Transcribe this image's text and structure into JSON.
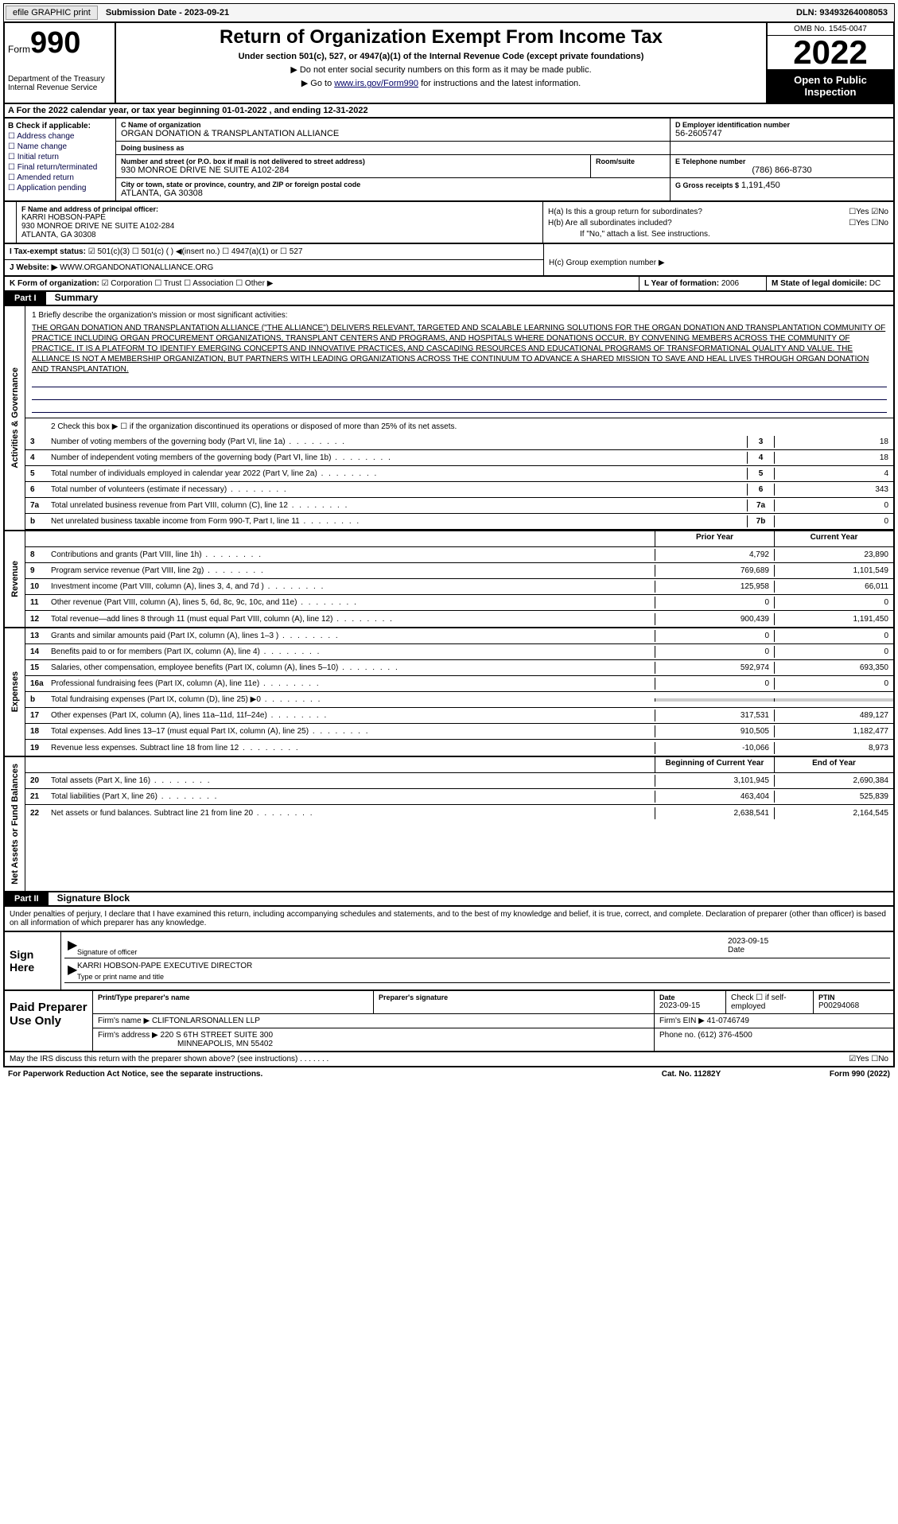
{
  "header": {
    "efile": "efile GRAPHIC print",
    "submission_label": "Submission Date - 2023-09-21",
    "dln": "DLN: 93493264008053"
  },
  "form": {
    "form_label": "Form",
    "form_number": "990",
    "title": "Return of Organization Exempt From Income Tax",
    "subtitle": "Under section 501(c), 527, or 4947(a)(1) of the Internal Revenue Code (except private foundations)",
    "note1": "▶ Do not enter social security numbers on this form as it may be made public.",
    "note2_pre": "▶ Go to ",
    "note2_link": "www.irs.gov/Form990",
    "note2_post": " for instructions and the latest information.",
    "dept": "Department of the Treasury\nInternal Revenue Service",
    "omb": "OMB No. 1545-0047",
    "year": "2022",
    "open": "Open to Public Inspection"
  },
  "section_a": "A For the 2022 calendar year, or tax year beginning 01-01-2022   , and ending 12-31-2022",
  "col_b": {
    "label": "B Check if applicable:",
    "items": [
      "Address change",
      "Name change",
      "Initial return",
      "Final return/terminated",
      "Amended return",
      "Application pending"
    ]
  },
  "org": {
    "c_label": "C Name of organization",
    "name": "ORGAN DONATION & TRANSPLANTATION ALLIANCE",
    "dba_label": "Doing business as",
    "dba": "",
    "addr_label": "Number and street (or P.O. box if mail is not delivered to street address)",
    "addr": "930 MONROE DRIVE NE SUITE A102-284",
    "room_label": "Room/suite",
    "room": "",
    "city_label": "City or town, state or province, country, and ZIP or foreign postal code",
    "city": "ATLANTA, GA  30308",
    "d_label": "D Employer identification number",
    "ein": "56-2605747",
    "e_label": "E Telephone number",
    "phone": "(786) 866-8730",
    "g_label": "G Gross receipts $",
    "gross": "1,191,450"
  },
  "f": {
    "label": "F  Name and address of principal officer:",
    "name": "KARRI HOBSON-PAPE",
    "addr1": "930 MONROE DRIVE NE SUITE A102-284",
    "addr2": "ATLANTA, GA  30308"
  },
  "h": {
    "a": "H(a)  Is this a group return for subordinates?",
    "a_yn": "☐Yes ☑No",
    "b": "H(b)  Are all subordinates included?",
    "b_yn": "☐Yes ☐No",
    "b_note": "If \"No,\" attach a list. See instructions.",
    "c": "H(c)  Group exemption number ▶"
  },
  "i": {
    "label": "I   Tax-exempt status:",
    "opts": "☑ 501(c)(3)   ☐ 501(c) (  ) ◀(insert no.)   ☐ 4947(a)(1) or   ☐ 527"
  },
  "j": {
    "label": "J   Website: ▶",
    "val": "WWW.ORGANDONATIONALLIANCE.ORG"
  },
  "k": {
    "label": "K Form of organization:",
    "opts": "☑ Corporation ☐ Trust ☐ Association ☐ Other ▶"
  },
  "l": {
    "label": "L Year of formation:",
    "val": "2006"
  },
  "m": {
    "label": "M State of legal domicile:",
    "val": "DC"
  },
  "part1": {
    "header": "Part I",
    "title": "Summary",
    "q1_label": "1  Briefly describe the organization's mission or most significant activities:",
    "mission": "THE ORGAN DONATION AND TRANSPLANTATION ALLIANCE (\"THE ALLIANCE\") DELIVERS RELEVANT, TARGETED AND SCALABLE LEARNING SOLUTIONS FOR THE ORGAN DONATION AND TRANSPLANTATION COMMUNITY OF PRACTICE INCLUDING ORGAN PROCUREMENT ORGANIZATIONS, TRANSPLANT CENTERS AND PROGRAMS, AND HOSPITALS WHERE DONATIONS OCCUR. BY CONVENING MEMBERS ACROSS THE COMMUNITY OF PRACTICE, IT IS A PLATFORM TO IDENTIFY EMERGING CONCEPTS AND INNOVATIVE PRACTICES, AND CASCADING RESOURCES AND EDUCATIONAL PROGRAMS OF TRANSFORMATIONAL QUALITY AND VALUE. THE ALLIANCE IS NOT A MEMBERSHIP ORGANIZATION, BUT PARTNERS WITH LEADING ORGANIZATIONS ACROSS THE CONTINUUM TO ADVANCE A SHARED MISSION TO SAVE AND HEAL LIVES THROUGH ORGAN DONATION AND TRANSPLANTATION.",
    "q2": "2   Check this box ▶ ☐ if the organization discontinued its operations or disposed of more than 25% of its net assets.",
    "tabs": {
      "activities": "Activities & Governance",
      "revenue": "Revenue",
      "expenses": "Expenses",
      "netassets": "Net Assets or Fund Balances"
    },
    "lines_ag": [
      {
        "n": "3",
        "d": "Number of voting members of the governing body (Part VI, line 1a)",
        "ref": "3",
        "v": "18"
      },
      {
        "n": "4",
        "d": "Number of independent voting members of the governing body (Part VI, line 1b)",
        "ref": "4",
        "v": "18"
      },
      {
        "n": "5",
        "d": "Total number of individuals employed in calendar year 2022 (Part V, line 2a)",
        "ref": "5",
        "v": "4"
      },
      {
        "n": "6",
        "d": "Total number of volunteers (estimate if necessary)",
        "ref": "6",
        "v": "343"
      },
      {
        "n": "7a",
        "d": "Total unrelated business revenue from Part VIII, column (C), line 12",
        "ref": "7a",
        "v": "0"
      },
      {
        "n": "b",
        "d": "Net unrelated business taxable income from Form 990-T, Part I, line 11",
        "ref": "7b",
        "v": "0"
      }
    ],
    "header_prior": "Prior Year",
    "header_curr": "Current Year",
    "lines_rev": [
      {
        "n": "8",
        "d": "Contributions and grants (Part VIII, line 1h)",
        "p": "4,792",
        "c": "23,890"
      },
      {
        "n": "9",
        "d": "Program service revenue (Part VIII, line 2g)",
        "p": "769,689",
        "c": "1,101,549"
      },
      {
        "n": "10",
        "d": "Investment income (Part VIII, column (A), lines 3, 4, and 7d )",
        "p": "125,958",
        "c": "66,011"
      },
      {
        "n": "11",
        "d": "Other revenue (Part VIII, column (A), lines 5, 6d, 8c, 9c, 10c, and 11e)",
        "p": "0",
        "c": "0"
      },
      {
        "n": "12",
        "d": "Total revenue—add lines 8 through 11 (must equal Part VIII, column (A), line 12)",
        "p": "900,439",
        "c": "1,191,450"
      }
    ],
    "lines_exp": [
      {
        "n": "13",
        "d": "Grants and similar amounts paid (Part IX, column (A), lines 1–3 )",
        "p": "0",
        "c": "0"
      },
      {
        "n": "14",
        "d": "Benefits paid to or for members (Part IX, column (A), line 4)",
        "p": "0",
        "c": "0"
      },
      {
        "n": "15",
        "d": "Salaries, other compensation, employee benefits (Part IX, column (A), lines 5–10)",
        "p": "592,974",
        "c": "693,350"
      },
      {
        "n": "16a",
        "d": "Professional fundraising fees (Part IX, column (A), line 11e)",
        "p": "0",
        "c": "0"
      },
      {
        "n": "b",
        "d": "Total fundraising expenses (Part IX, column (D), line 25) ▶0",
        "p": "",
        "c": "",
        "shaded": true
      },
      {
        "n": "17",
        "d": "Other expenses (Part IX, column (A), lines 11a–11d, 11f–24e)",
        "p": "317,531",
        "c": "489,127"
      },
      {
        "n": "18",
        "d": "Total expenses. Add lines 13–17 (must equal Part IX, column (A), line 25)",
        "p": "910,505",
        "c": "1,182,477"
      },
      {
        "n": "19",
        "d": "Revenue less expenses. Subtract line 18 from line 12",
        "p": "-10,066",
        "c": "8,973"
      }
    ],
    "header_beg": "Beginning of Current Year",
    "header_end": "End of Year",
    "lines_na": [
      {
        "n": "20",
        "d": "Total assets (Part X, line 16)",
        "p": "3,101,945",
        "c": "2,690,384"
      },
      {
        "n": "21",
        "d": "Total liabilities (Part X, line 26)",
        "p": "463,404",
        "c": "525,839"
      },
      {
        "n": "22",
        "d": "Net assets or fund balances. Subtract line 21 from line 20",
        "p": "2,638,541",
        "c": "2,164,545"
      }
    ]
  },
  "part2": {
    "header": "Part II",
    "title": "Signature Block",
    "decl": "Under penalties of perjury, I declare that I have examined this return, including accompanying schedules and statements, and to the best of my knowledge and belief, it is true, correct, and complete. Declaration of preparer (other than officer) is based on all information of which preparer has any knowledge.",
    "sign_here": "Sign Here",
    "sig_officer_label": "Signature of officer",
    "sig_date": "2023-09-15",
    "date_label": "Date",
    "officer_name": "KARRI HOBSON-PAPE  EXECUTIVE DIRECTOR",
    "officer_name_label": "Type or print name and title",
    "paid_prep": "Paid Preparer Use Only",
    "prep_name_label": "Print/Type preparer's name",
    "prep_sig_label": "Preparer's signature",
    "prep_date_label": "Date",
    "prep_date": "2023-09-15",
    "prep_check_label": "Check ☐ if self-employed",
    "ptin_label": "PTIN",
    "ptin": "P00294068",
    "firm_name_label": "Firm's name    ▶",
    "firm_name": "CLIFTONLARSONALLEN LLP",
    "firm_ein_label": "Firm's EIN ▶",
    "firm_ein": "41-0746749",
    "firm_addr_label": "Firm's address ▶",
    "firm_addr1": "220 S 6TH STREET SUITE 300",
    "firm_addr2": "MINNEAPOLIS, MN  55402",
    "firm_phone_label": "Phone no.",
    "firm_phone": "(612) 376-4500",
    "discuss": "May the IRS discuss this return with the preparer shown above? (see instructions)",
    "discuss_yn": "☑Yes  ☐No"
  },
  "footer": {
    "paperwork": "For Paperwork Reduction Act Notice, see the separate instructions.",
    "cat": "Cat. No. 11282Y",
    "form": "Form 990 (2022)"
  }
}
